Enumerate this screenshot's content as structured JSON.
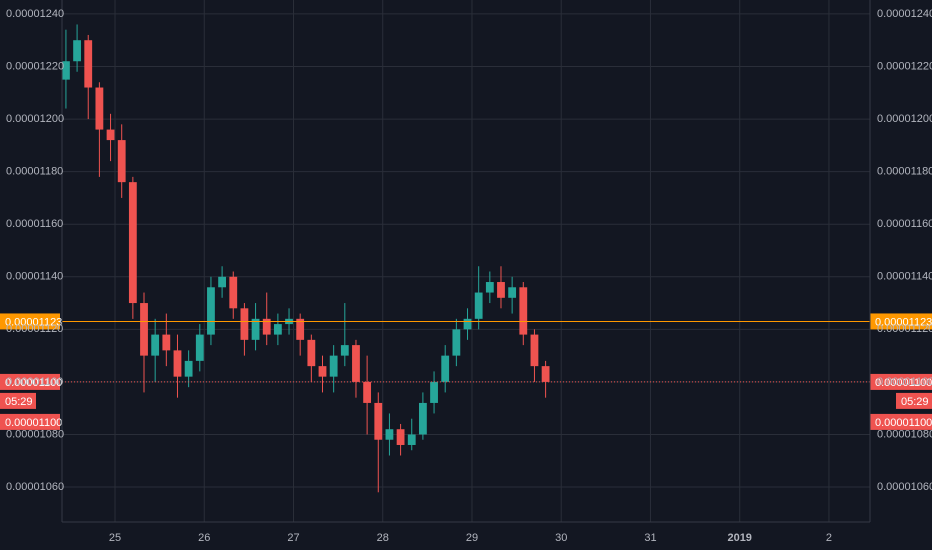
{
  "chart_data": {
    "type": "candlestick",
    "background": "#131722",
    "grid": true,
    "up_color": "#26a69a",
    "down_color": "#ef5350",
    "xlim": [
      24.406,
      33.46
    ],
    "xticks": [
      25,
      26,
      27,
      28,
      29,
      30,
      31,
      {
        "value": 32,
        "label": "2019"
      },
      {
        "value": 33,
        "label": "2"
      }
    ],
    "ylim": [
      1.0467e-05,
      1.2453e-05
    ],
    "yticks": [
      {
        "value": 1.06e-05,
        "label": "0.00001060"
      },
      {
        "value": 1.08e-05,
        "label": "0.00001080"
      },
      {
        "value": 1.1e-05,
        "label": "0.00001100"
      },
      {
        "value": 1.12e-05,
        "label": "0.00001120"
      },
      {
        "value": 1.14e-05,
        "label": "0.00001140"
      },
      {
        "value": 1.16e-05,
        "label": "0.00001160"
      },
      {
        "value": 1.18e-05,
        "label": "0.00001180"
      },
      {
        "value": 1.2e-05,
        "label": "0.00001200"
      },
      {
        "value": 1.22e-05,
        "label": "0.00001220"
      },
      {
        "value": 1.24e-05,
        "label": "0.00001240"
      }
    ],
    "x": [
      24.45,
      24.575,
      24.7,
      24.825,
      24.95,
      25.075,
      25.2,
      25.325,
      25.45,
      25.575,
      25.7,
      25.825,
      25.95,
      26.075,
      26.2,
      26.325,
      26.45,
      26.575,
      26.7,
      26.825,
      26.95,
      27.075,
      27.2,
      27.325,
      27.45,
      27.575,
      27.7,
      27.825,
      27.95,
      28.075,
      28.2,
      28.325,
      28.45,
      28.575,
      28.7,
      28.825,
      28.95,
      29.075,
      29.2,
      29.325,
      29.45,
      29.575,
      29.7,
      29.825
    ],
    "open": [
      1.215e-05,
      1.222e-05,
      1.23e-05,
      1.212e-05,
      1.196e-05,
      1.192e-05,
      1.176e-05,
      1.13e-05,
      1.11e-05,
      1.118e-05,
      1.112e-05,
      1.102e-05,
      1.108e-05,
      1.118e-05,
      1.136e-05,
      1.14e-05,
      1.128e-05,
      1.116e-05,
      1.124e-05,
      1.118e-05,
      1.122e-05,
      1.124e-05,
      1.116e-05,
      1.106e-05,
      1.102e-05,
      1.11e-05,
      1.114e-05,
      1.1e-05,
      1.092e-05,
      1.078e-05,
      1.082e-05,
      1.076e-05,
      1.08e-05,
      1.092e-05,
      1.1e-05,
      1.11e-05,
      1.12e-05,
      1.124e-05,
      1.134e-05,
      1.138e-05,
      1.132e-05,
      1.136e-05,
      1.118e-05,
      1.106e-05
    ],
    "high": [
      1.234e-05,
      1.236e-05,
      1.232e-05,
      1.214e-05,
      1.202e-05,
      1.198e-05,
      1.178e-05,
      1.134e-05,
      1.124e-05,
      1.126e-05,
      1.118e-05,
      1.112e-05,
      1.122e-05,
      1.14e-05,
      1.144e-05,
      1.142e-05,
      1.13e-05,
      1.13e-05,
      1.134e-05,
      1.126e-05,
      1.128e-05,
      1.126e-05,
      1.118e-05,
      1.11e-05,
      1.114e-05,
      1.13e-05,
      1.116e-05,
      1.11e-05,
      1.096e-05,
      1.088e-05,
      1.084e-05,
      1.086e-05,
      1.096e-05,
      1.104e-05,
      1.114e-05,
      1.124e-05,
      1.128e-05,
      1.144e-05,
      1.142e-05,
      1.144e-05,
      1.14e-05,
      1.138e-05,
      1.12e-05,
      1.108e-05
    ],
    "low": [
      1.204e-05,
      1.218e-05,
      1.2e-05,
      1.178e-05,
      1.184e-05,
      1.17e-05,
      1.124e-05,
      1.096e-05,
      1.1e-05,
      1.106e-05,
      1.094e-05,
      1.098e-05,
      1.104e-05,
      1.114e-05,
      1.132e-05,
      1.124e-05,
      1.11e-05,
      1.112e-05,
      1.114e-05,
      1.114e-05,
      1.118e-05,
      1.11e-05,
      1.1e-05,
      1.096e-05,
      1.096e-05,
      1.106e-05,
      1.094e-05,
      1.08e-05,
      1.058e-05,
      1.072e-05,
      1.072e-05,
      1.074e-05,
      1.078e-05,
      1.088e-05,
      1.096e-05,
      1.106e-05,
      1.116e-05,
      1.12e-05,
      1.13e-05,
      1.128e-05,
      1.126e-05,
      1.114e-05,
      1.1e-05,
      1.094e-05
    ],
    "close": [
      1.222e-05,
      1.23e-05,
      1.212e-05,
      1.196e-05,
      1.192e-05,
      1.176e-05,
      1.13e-05,
      1.11e-05,
      1.118e-05,
      1.112e-05,
      1.102e-05,
      1.108e-05,
      1.118e-05,
      1.136e-05,
      1.14e-05,
      1.128e-05,
      1.116e-05,
      1.124e-05,
      1.118e-05,
      1.122e-05,
      1.124e-05,
      1.116e-05,
      1.106e-05,
      1.102e-05,
      1.11e-05,
      1.114e-05,
      1.1e-05,
      1.092e-05,
      1.078e-05,
      1.082e-05,
      1.076e-05,
      1.08e-05,
      1.092e-05,
      1.1e-05,
      1.11e-05,
      1.12e-05,
      1.124e-05,
      1.134e-05,
      1.138e-05,
      1.132e-05,
      1.136e-05,
      1.118e-05,
      1.106e-05,
      1.1e-05
    ],
    "price_lines": [
      {
        "value": 1.123e-05,
        "label": "0.00001123",
        "color": "#ff9800",
        "style": "solid"
      },
      {
        "value": 1.1e-05,
        "label": "0.00001100",
        "color": "#ef5350",
        "style": "dotted",
        "countdown": "05:29",
        "second_label": "0.00001100"
      }
    ]
  }
}
